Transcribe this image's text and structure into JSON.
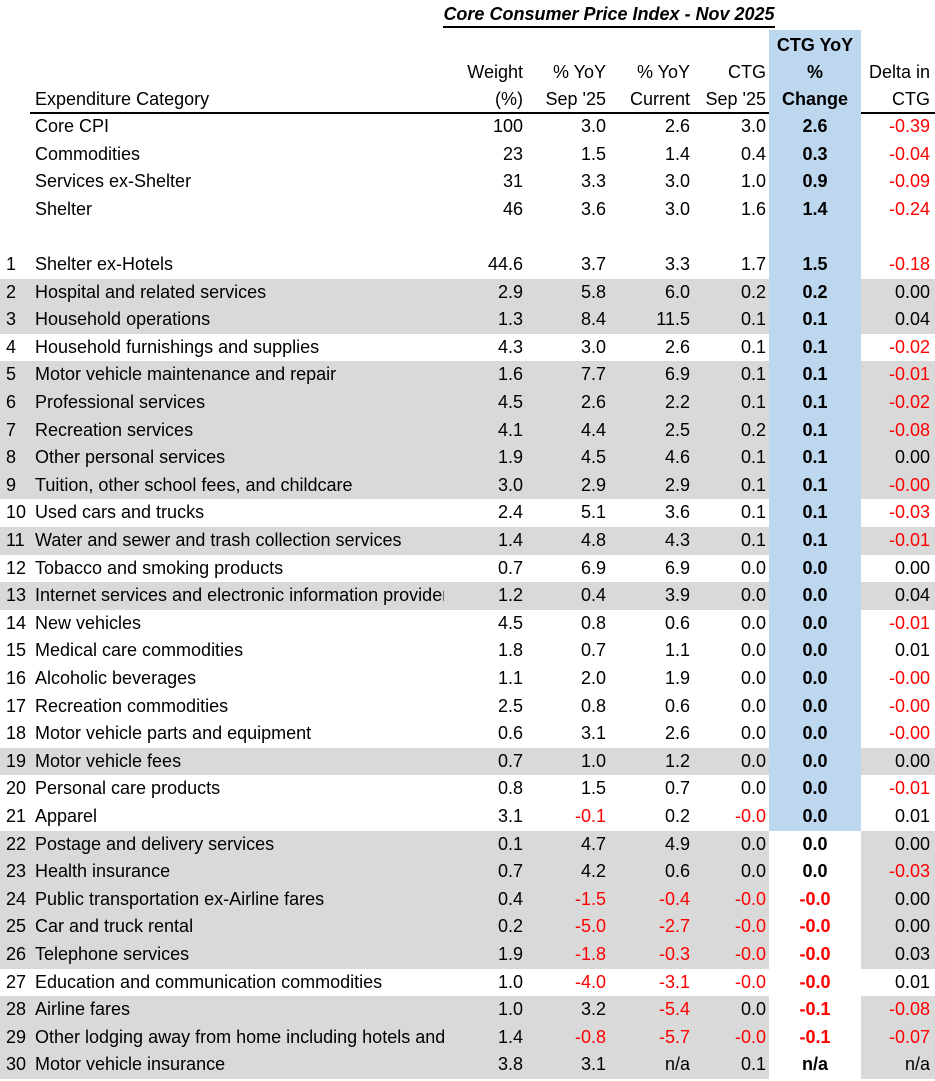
{
  "title": "Core Consumer Price Index - Nov 2025",
  "colors": {
    "gray_row": "#d9d9d9",
    "ctg_highlight": "#bdd7ee",
    "negative": "#ff0000",
    "text": "#000000"
  },
  "chart_data": {
    "type": "table",
    "title": "Core Consumer Price Index - Nov 2025",
    "columns": [
      {
        "key": "num",
        "lines": [
          ""
        ]
      },
      {
        "key": "category",
        "lines": [
          "Expenditure Category"
        ]
      },
      {
        "key": "weight",
        "lines": [
          "Weight",
          "(%)"
        ]
      },
      {
        "key": "yoy_sep",
        "lines": [
          "% YoY",
          "Sep '25"
        ]
      },
      {
        "key": "yoy_cur",
        "lines": [
          "% YoY",
          "Current"
        ]
      },
      {
        "key": "ctg_sep",
        "lines": [
          "CTG",
          "Sep '25"
        ]
      },
      {
        "key": "ctg_yoy",
        "lines": [
          "CTG YoY",
          "%",
          "Change"
        ],
        "bold": true
      },
      {
        "key": "delta",
        "lines": [
          "Delta in",
          "CTG"
        ]
      }
    ],
    "summary_rows": [
      {
        "category": "Core CPI",
        "weight": "100",
        "yoy_sep": "3.0",
        "yoy_cur": "2.6",
        "ctg_sep": "3.0",
        "ctg_yoy": "2.6",
        "delta": "-0.39"
      },
      {
        "category": "Commodities",
        "weight": "23",
        "yoy_sep": "1.5",
        "yoy_cur": "1.4",
        "ctg_sep": "0.4",
        "ctg_yoy": "0.3",
        "delta": "-0.04"
      },
      {
        "category": "Services ex-Shelter",
        "weight": "31",
        "yoy_sep": "3.3",
        "yoy_cur": "3.0",
        "ctg_sep": "1.0",
        "ctg_yoy": "0.9",
        "delta": "-0.09"
      },
      {
        "category": "Shelter",
        "weight": "46",
        "yoy_sep": "3.6",
        "yoy_cur": "3.0",
        "ctg_sep": "1.6",
        "ctg_yoy": "1.4",
        "delta": "-0.24"
      }
    ],
    "rows": [
      {
        "num": "1",
        "category": "Shelter ex-Hotels",
        "weight": "44.6",
        "yoy_sep": "3.7",
        "yoy_cur": "3.3",
        "ctg_sep": "1.7",
        "ctg_yoy": "1.5",
        "delta": "-0.18",
        "shaded": false
      },
      {
        "num": "2",
        "category": "Hospital and related services",
        "weight": "2.9",
        "yoy_sep": "5.8",
        "yoy_cur": "6.0",
        "ctg_sep": "0.2",
        "ctg_yoy": "0.2",
        "delta": "0.00",
        "shaded": true
      },
      {
        "num": "3",
        "category": "Household operations",
        "weight": "1.3",
        "yoy_sep": "8.4",
        "yoy_cur": "11.5",
        "ctg_sep": "0.1",
        "ctg_yoy": "0.1",
        "delta": "0.04",
        "shaded": true
      },
      {
        "num": "4",
        "category": "Household furnishings and supplies",
        "weight": "4.3",
        "yoy_sep": "3.0",
        "yoy_cur": "2.6",
        "ctg_sep": "0.1",
        "ctg_yoy": "0.1",
        "delta": "-0.02",
        "shaded": false
      },
      {
        "num": "5",
        "category": "Motor vehicle maintenance and repair",
        "weight": "1.6",
        "yoy_sep": "7.7",
        "yoy_cur": "6.9",
        "ctg_sep": "0.1",
        "ctg_yoy": "0.1",
        "delta": "-0.01",
        "shaded": true
      },
      {
        "num": "6",
        "category": "Professional services",
        "weight": "4.5",
        "yoy_sep": "2.6",
        "yoy_cur": "2.2",
        "ctg_sep": "0.1",
        "ctg_yoy": "0.1",
        "delta": "-0.02",
        "shaded": true
      },
      {
        "num": "7",
        "category": "Recreation services",
        "weight": "4.1",
        "yoy_sep": "4.4",
        "yoy_cur": "2.5",
        "ctg_sep": "0.2",
        "ctg_yoy": "0.1",
        "delta": "-0.08",
        "shaded": true
      },
      {
        "num": "8",
        "category": "Other personal services",
        "weight": "1.9",
        "yoy_sep": "4.5",
        "yoy_cur": "4.6",
        "ctg_sep": "0.1",
        "ctg_yoy": "0.1",
        "delta": "0.00",
        "shaded": true
      },
      {
        "num": "9",
        "category": "Tuition, other school fees, and childcare",
        "weight": "3.0",
        "yoy_sep": "2.9",
        "yoy_cur": "2.9",
        "ctg_sep": "0.1",
        "ctg_yoy": "0.1",
        "delta": "-0.00",
        "shaded": true
      },
      {
        "num": "10",
        "category": "Used cars and trucks",
        "weight": "2.4",
        "yoy_sep": "5.1",
        "yoy_cur": "3.6",
        "ctg_sep": "0.1",
        "ctg_yoy": "0.1",
        "delta": "-0.03",
        "shaded": false
      },
      {
        "num": "11",
        "category": "Water and sewer and trash collection services",
        "weight": "1.4",
        "yoy_sep": "4.8",
        "yoy_cur": "4.3",
        "ctg_sep": "0.1",
        "ctg_yoy": "0.1",
        "delta": "-0.01",
        "shaded": true
      },
      {
        "num": "12",
        "category": "Tobacco and smoking products",
        "weight": "0.7",
        "yoy_sep": "6.9",
        "yoy_cur": "6.9",
        "ctg_sep": "0.0",
        "ctg_yoy": "0.0",
        "delta": "0.00",
        "shaded": false
      },
      {
        "num": "13",
        "category": "Internet services and electronic information providers",
        "weight": "1.2",
        "yoy_sep": "0.4",
        "yoy_cur": "3.9",
        "ctg_sep": "0.0",
        "ctg_yoy": "0.0",
        "delta": "0.04",
        "shaded": true
      },
      {
        "num": "14",
        "category": "New vehicles",
        "weight": "4.5",
        "yoy_sep": "0.8",
        "yoy_cur": "0.6",
        "ctg_sep": "0.0",
        "ctg_yoy": "0.0",
        "delta": "-0.01",
        "shaded": false
      },
      {
        "num": "15",
        "category": "Medical care commodities",
        "weight": "1.8",
        "yoy_sep": "0.7",
        "yoy_cur": "1.1",
        "ctg_sep": "0.0",
        "ctg_yoy": "0.0",
        "delta": "0.01",
        "shaded": false
      },
      {
        "num": "16",
        "category": "Alcoholic beverages",
        "weight": "1.1",
        "yoy_sep": "2.0",
        "yoy_cur": "1.9",
        "ctg_sep": "0.0",
        "ctg_yoy": "0.0",
        "delta": "-0.00",
        "shaded": false
      },
      {
        "num": "17",
        "category": "Recreation commodities",
        "weight": "2.5",
        "yoy_sep": "0.8",
        "yoy_cur": "0.6",
        "ctg_sep": "0.0",
        "ctg_yoy": "0.0",
        "delta": "-0.00",
        "shaded": false
      },
      {
        "num": "18",
        "category": "Motor vehicle parts and equipment",
        "weight": "0.6",
        "yoy_sep": "3.1",
        "yoy_cur": "2.6",
        "ctg_sep": "0.0",
        "ctg_yoy": "0.0",
        "delta": "-0.00",
        "shaded": false
      },
      {
        "num": "19",
        "category": "Motor vehicle fees",
        "weight": "0.7",
        "yoy_sep": "1.0",
        "yoy_cur": "1.2",
        "ctg_sep": "0.0",
        "ctg_yoy": "0.0",
        "delta": "0.00",
        "shaded": true
      },
      {
        "num": "20",
        "category": "Personal care products",
        "weight": "0.8",
        "yoy_sep": "1.5",
        "yoy_cur": "0.7",
        "ctg_sep": "0.0",
        "ctg_yoy": "0.0",
        "delta": "-0.01",
        "shaded": false
      },
      {
        "num": "21",
        "category": "Apparel",
        "weight": "3.1",
        "yoy_sep": "-0.1",
        "yoy_cur": "0.2",
        "ctg_sep": "-0.0",
        "ctg_yoy": "0.0",
        "delta": "0.01",
        "shaded": false
      },
      {
        "num": "22",
        "category": "Postage and delivery services",
        "weight": "0.1",
        "yoy_sep": "4.7",
        "yoy_cur": "4.9",
        "ctg_sep": "0.0",
        "ctg_yoy": "0.0",
        "delta": "0.00",
        "shaded": true
      },
      {
        "num": "23",
        "category": "Health insurance",
        "weight": "0.7",
        "yoy_sep": "4.2",
        "yoy_cur": "0.6",
        "ctg_sep": "0.0",
        "ctg_yoy": "0.0",
        "delta": "-0.03",
        "shaded": true
      },
      {
        "num": "24",
        "category": "Public transportation ex-Airline fares",
        "weight": "0.4",
        "yoy_sep": "-1.5",
        "yoy_cur": "-0.4",
        "ctg_sep": "-0.0",
        "ctg_yoy": "-0.0",
        "delta": "0.00",
        "shaded": true
      },
      {
        "num": "25",
        "category": "Car and truck rental",
        "weight": "0.2",
        "yoy_sep": "-5.0",
        "yoy_cur": "-2.7",
        "ctg_sep": "-0.0",
        "ctg_yoy": "-0.0",
        "delta": "0.00",
        "shaded": true
      },
      {
        "num": "26",
        "category": "Telephone services",
        "weight": "1.9",
        "yoy_sep": "-1.8",
        "yoy_cur": "-0.3",
        "ctg_sep": "-0.0",
        "ctg_yoy": "-0.0",
        "delta": "0.03",
        "shaded": true
      },
      {
        "num": "27",
        "category": "Education and communication commodities",
        "weight": "1.0",
        "yoy_sep": "-4.0",
        "yoy_cur": "-3.1",
        "ctg_sep": "-0.0",
        "ctg_yoy": "-0.0",
        "delta": "0.01",
        "shaded": false
      },
      {
        "num": "28",
        "category": "Airline fares",
        "weight": "1.0",
        "yoy_sep": "3.2",
        "yoy_cur": "-5.4",
        "ctg_sep": "0.0",
        "ctg_yoy": "-0.1",
        "delta": "-0.08",
        "shaded": true
      },
      {
        "num": "29",
        "category": "Other lodging away from home including hotels and motels",
        "weight": "1.4",
        "yoy_sep": "-0.8",
        "yoy_cur": "-5.7",
        "ctg_sep": "-0.0",
        "ctg_yoy": "-0.1",
        "delta": "-0.07",
        "shaded": true
      },
      {
        "num": "30",
        "category": "Motor vehicle insurance",
        "weight": "3.8",
        "yoy_sep": "3.1",
        "yoy_cur": "n/a",
        "ctg_sep": "0.1",
        "ctg_yoy": "n/a",
        "delta": "n/a",
        "shaded": true
      }
    ]
  }
}
